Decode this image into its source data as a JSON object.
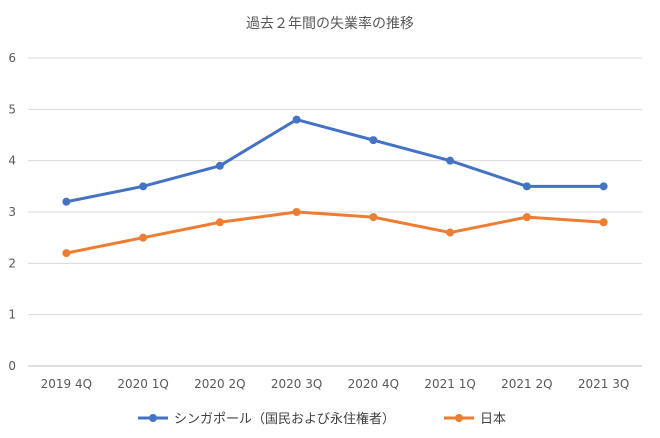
{
  "chart_data": {
    "type": "line",
    "title": "過去２年間の失業率の推移",
    "categories": [
      "2019 4Q",
      "2020 1Q",
      "2020 2Q",
      "2020 3Q",
      "2020 4Q",
      "2021 1Q",
      "2021 2Q",
      "2021 3Q"
    ],
    "y_ticks": [
      "0",
      "1",
      "2",
      "3",
      "4",
      "5",
      "6"
    ],
    "ylim": [
      0,
      6
    ],
    "grid": "horizontal",
    "legend_position": "bottom",
    "series": [
      {
        "name": "シンガポール（国民および永住権者）",
        "color": "#4472C4",
        "values": [
          3.2,
          3.5,
          3.9,
          4.8,
          4.4,
          4.0,
          3.5,
          3.5
        ]
      },
      {
        "name": "日本",
        "color": "#ED7D31",
        "values": [
          2.2,
          2.5,
          2.8,
          3.0,
          2.9,
          2.6,
          2.9,
          2.8
        ]
      }
    ]
  }
}
